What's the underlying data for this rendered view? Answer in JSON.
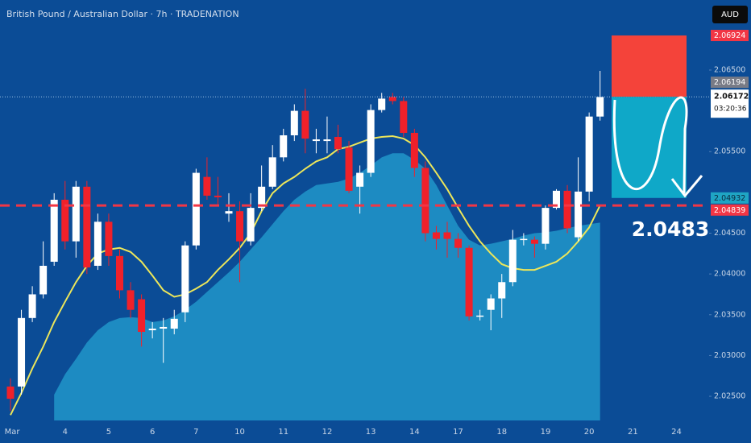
{
  "chart_data": {
    "type": "candlestick",
    "title": "British Pound / Australian Dollar · 7h · TRADENATION",
    "currency": "AUD",
    "categories": [
      "Mar",
      null,
      null,
      null,
      null,
      "4",
      null,
      null,
      null,
      "5",
      null,
      null,
      null,
      "6",
      null,
      null,
      null,
      "7",
      null,
      null,
      null,
      "10",
      null,
      null,
      null,
      "11",
      null,
      null,
      null,
      "12",
      null,
      null,
      null,
      "13",
      null,
      null,
      null,
      "14",
      null,
      null,
      null,
      "17",
      null,
      null,
      null,
      "18",
      null,
      null,
      null,
      "19",
      null,
      null,
      null,
      "20",
      null,
      null,
      null,
      "21",
      null,
      null,
      null,
      "24"
    ],
    "open": [
      2.0262,
      2.0262,
      2.0346,
      2.0375,
      2.0415,
      2.0491,
      2.044,
      2.0507,
      2.041,
      2.0464,
      2.0422,
      2.038,
      2.0369,
      2.0331,
      2.0333,
      2.0333,
      2.0353,
      2.0435,
      2.0519,
      2.0496,
      2.0474,
      2.0477,
      2.044,
      2.0481,
      2.0507,
      2.0543,
      2.057,
      2.06,
      2.0563,
      2.0563,
      2.0568,
      2.0555,
      2.0507,
      2.0524,
      2.0601,
      2.0617,
      2.0612,
      2.0573,
      2.053,
      2.0451,
      2.0451,
      2.0443,
      2.0432,
      2.0348,
      2.0356,
      2.037,
      2.039,
      2.0442,
      2.0442,
      2.0437,
      2.0481,
      2.0502,
      2.0445,
      2.0501,
      2.0593,
      null,
      null,
      null,
      null,
      null,
      null,
      null
    ],
    "close": [
      2.0247,
      2.0346,
      2.0375,
      2.041,
      2.0491,
      2.044,
      2.0507,
      2.0408,
      2.0464,
      2.0422,
      2.038,
      2.0356,
      2.0329,
      2.0333,
      2.0335,
      2.0345,
      2.0435,
      2.0524,
      2.0496,
      2.0494,
      2.0477,
      2.044,
      2.0481,
      2.0507,
      2.0543,
      2.057,
      2.06,
      2.0566,
      2.0565,
      2.0565,
      2.0553,
      2.0502,
      2.0524,
      2.0601,
      2.0615,
      2.0612,
      2.0573,
      2.053,
      2.045,
      2.0443,
      2.0443,
      2.0432,
      2.0348,
      2.0349,
      2.037,
      2.039,
      2.0442,
      2.0443,
      2.0437,
      2.0481,
      2.0502,
      2.0456,
      2.0501,
      2.0593,
      2.0617,
      null,
      null,
      null,
      null,
      null,
      null,
      null
    ],
    "high": [
      2.0272,
      2.0356,
      2.0385,
      2.044,
      2.0499,
      2.0514,
      2.0514,
      2.0514,
      2.0474,
      2.0474,
      2.043,
      2.039,
      2.0375,
      2.0341,
      2.0346,
      2.0356,
      2.044,
      2.0529,
      2.0543,
      2.0519,
      2.0499,
      2.0489,
      2.0499,
      2.0533,
      2.0558,
      2.0578,
      2.0608,
      2.0627,
      2.0578,
      2.0593,
      2.0583,
      2.0563,
      2.0533,
      2.0608,
      2.0622,
      2.0622,
      2.0617,
      2.0578,
      2.0538,
      2.0459,
      2.0464,
      2.045,
      2.0435,
      2.0356,
      2.0375,
      2.04,
      2.0454,
      2.045,
      2.0446,
      2.0484,
      2.0504,
      2.0509,
      2.0543,
      2.0598,
      2.0649,
      null,
      null,
      null,
      null,
      null,
      null,
      null
    ],
    "low": [
      2.0232,
      2.0252,
      2.0341,
      2.037,
      2.041,
      2.043,
      2.042,
      2.04,
      2.0405,
      2.041,
      2.037,
      2.0346,
      2.0311,
      2.0321,
      2.0291,
      2.0326,
      2.0341,
      2.043,
      2.0491,
      2.0484,
      2.0464,
      2.039,
      2.0435,
      2.0477,
      2.0504,
      2.0538,
      2.0563,
      2.0548,
      2.0548,
      2.0548,
      2.0548,
      2.0499,
      2.0474,
      2.0519,
      2.0598,
      2.0608,
      2.0568,
      2.0519,
      2.044,
      2.043,
      2.042,
      2.042,
      2.0343,
      2.0343,
      2.0331,
      2.0346,
      2.0385,
      2.0435,
      2.042,
      2.043,
      2.0479,
      2.045,
      2.044,
      2.0489,
      2.0588,
      null,
      null,
      null,
      null,
      null,
      null,
      null
    ],
    "up_color": "#ffffff",
    "down_color": "#f0212a",
    "overlays": [
      {
        "type": "area",
        "color": "#1f92c6",
        "values": [
          null,
          null,
          null,
          null,
          2.0252,
          2.0277,
          2.0296,
          2.0316,
          2.0331,
          2.0341,
          2.0346,
          2.0347,
          2.0346,
          2.0341,
          2.0343,
          2.0348,
          2.0356,
          2.0366,
          2.0378,
          2.039,
          2.0402,
          2.0415,
          2.043,
          2.0445,
          2.0461,
          2.0477,
          2.0491,
          2.0501,
          2.0509,
          2.0511,
          2.0513,
          2.0517,
          2.0524,
          2.0533,
          2.0543,
          2.0548,
          2.0548,
          2.054,
          2.0529,
          2.0509,
          2.0484,
          2.0459,
          2.0442,
          2.0435,
          2.0437,
          2.044,
          2.0443,
          2.0447,
          2.045,
          2.0451,
          2.0453,
          2.0456,
          2.0459,
          2.0461,
          2.0463,
          null,
          null,
          null,
          null,
          null,
          null,
          null
        ]
      },
      {
        "type": "line",
        "color": "#ece65a",
        "values": [
          2.0227,
          2.0254,
          2.0284,
          2.0311,
          2.0341,
          2.0366,
          2.039,
          2.041,
          2.0425,
          2.043,
          2.0432,
          2.0427,
          2.0415,
          2.0398,
          2.038,
          2.0372,
          2.0375,
          2.0382,
          2.039,
          2.0405,
          2.0418,
          2.0432,
          2.045,
          2.0477,
          2.0499,
          2.0511,
          2.0519,
          2.0529,
          2.0538,
          2.0543,
          2.0553,
          2.0556,
          2.0561,
          2.0566,
          2.0568,
          2.0569,
          2.0566,
          2.0558,
          2.0543,
          2.0524,
          2.0504,
          2.0481,
          2.0459,
          2.044,
          2.0425,
          2.0412,
          2.0407,
          2.0405,
          2.0405,
          2.041,
          2.0415,
          2.0425,
          2.044,
          2.0457,
          2.0484,
          null,
          null,
          null,
          null,
          null,
          null,
          null
        ]
      }
    ],
    "ylim": [
      2.02204,
      2.07359
    ],
    "yticks": [
      {
        "value": 2.065,
        "label": "2.06500"
      },
      {
        "value": 2.055,
        "label": "2.05500"
      },
      {
        "value": 2.045,
        "label": "2.04500"
      },
      {
        "value": 2.04,
        "label": "2.04000"
      },
      {
        "value": 2.035,
        "label": "2.03500"
      },
      {
        "value": 2.03,
        "label": "2.03000"
      },
      {
        "value": 2.025,
        "label": "2.02500"
      }
    ],
    "current_price": {
      "value": 2.06172,
      "label": "2.06172",
      "countdown": "03:20:36"
    },
    "price_labels": [
      {
        "value": 2.06924,
        "label": "2.06924",
        "color": "#f23645"
      },
      {
        "value": 2.06194,
        "label": "2.06194",
        "color": "#787b86"
      },
      {
        "value": 2.04932,
        "label": "2.04932",
        "color": "#1fa5c4"
      },
      {
        "value": 2.04839,
        "label": "2.04839",
        "color": "#f23645"
      }
    ],
    "position": {
      "stop": 2.06924,
      "entry": 2.06172,
      "target": 2.04932,
      "stop_color": "#f4433a",
      "target_color": "#0fa8c8"
    },
    "level_line": {
      "value": 2.04839,
      "color": "#f23645"
    },
    "annotation": "2.0483",
    "grid": false
  }
}
